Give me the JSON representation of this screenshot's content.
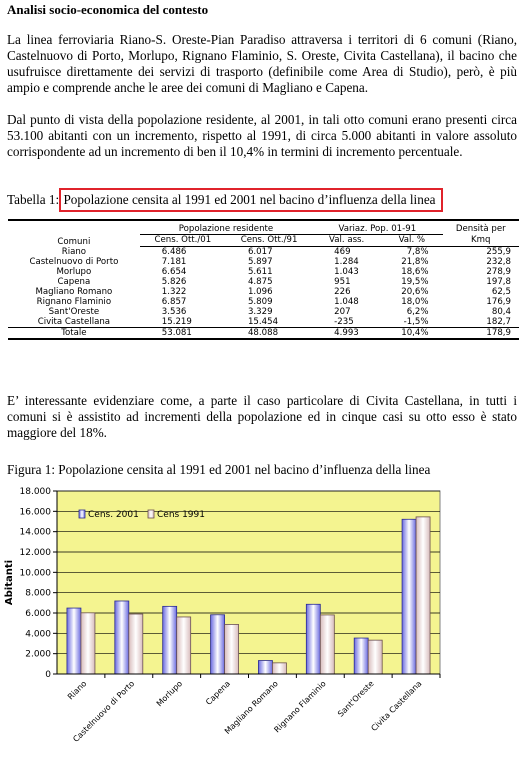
{
  "heading": "Analisi socio-economica del contesto",
  "para1": "La linea ferroviaria Riano-S. Oreste-Pian Paradiso attraversa i territori di 6 comuni (Riano, Castelnuovo di Porto, Morlupo, Rignano Flaminio, S. Oreste, Civita Castellana), il bacino che usufruisce direttamente dei servizi di trasporto (definibile come Area di Studio), però, è più ampio e comprende anche le aree dei comuni di Magliano e Capena.",
  "para2": "Dal punto di vista della popolazione residente, al 2001, in tali otto comuni erano presenti circa 53.100 abitanti con un incremento, rispetto al 1991, di circa 5.000 abitanti in valore assoluto corrispondente ad un incremento di ben il 10,4% in termini di incremento percentuale.",
  "table_caption": {
    "prefix": "Tabella 1: ",
    "text": "Popolazione censita al 1991 ed 2001 nel bacino d’influenza della linea"
  },
  "table": {
    "header": {
      "comuni": "Comuni",
      "pop_group": "Popolazione residente",
      "var_group": "Variaz. Pop. 01-91",
      "dens_line1": "Densità per",
      "cens01": "Cens. Ott./01",
      "cens91": "Cens. Ott./91",
      "val_ass": "Val. ass.",
      "val_pct": "Val. %",
      "dens_line2": "Kmq"
    },
    "rows": [
      {
        "comune": "Riano",
        "cens01": "6.486",
        "cens91": "6.017",
        "val_ass": "469",
        "val_pct": "7,8%",
        "densita": "255,9"
      },
      {
        "comune": "Castelnuovo di Porto",
        "cens01": "7.181",
        "cens91": "5.897",
        "val_ass": "1.284",
        "val_pct": "21,8%",
        "densita": "232,8"
      },
      {
        "comune": "Morlupo",
        "cens01": "6.654",
        "cens91": "5.611",
        "val_ass": "1.043",
        "val_pct": "18,6%",
        "densita": "278,9"
      },
      {
        "comune": "Capena",
        "cens01": "5.826",
        "cens91": "4.875",
        "val_ass": "951",
        "val_pct": "19,5%",
        "densita": "197,8"
      },
      {
        "comune": "Magliano Romano",
        "cens01": "1.322",
        "cens91": "1.096",
        "val_ass": "226",
        "val_pct": "20,6%",
        "densita": "62,5"
      },
      {
        "comune": "Rignano Flaminio",
        "cens01": "6.857",
        "cens91": "5.809",
        "val_ass": "1.048",
        "val_pct": "18,0%",
        "densita": "176,9"
      },
      {
        "comune": "Sant'Oreste",
        "cens01": "3.536",
        "cens91": "3.329",
        "val_ass": "207",
        "val_pct": "6,2%",
        "densita": "80,4"
      },
      {
        "comune": "Civita Castellana",
        "cens01": "15.219",
        "cens91": "15.454",
        "val_ass": "-235",
        "val_pct": "-1,5%",
        "densita": "182,7"
      }
    ],
    "total": {
      "comune": "Totale",
      "cens01": "53.081",
      "cens91": "48.088",
      "val_ass": "4.993",
      "val_pct": "10,4%",
      "densita": "178,9"
    }
  },
  "para3": "E’ interessante evidenziare come, a parte il caso particolare di Civita Castellana, in tutti i comuni si è assistito ad incrementi della popolazione ed in cinque casi su otto esso è stato maggiore del 18%.",
  "figure_caption": "Figura 1: Popolazione censita al 1991 ed 2001 nel bacino d’influenza della linea",
  "colors": {
    "plot_background": "#f4f490",
    "series_2001": "#6a6ae0",
    "series_1991": "#d8bcbc",
    "highlight_box": "#e0232b"
  },
  "chart_data": {
    "type": "bar",
    "categories": [
      "Riano",
      "Castelnuovo di Porto",
      "Morlupo",
      "Capena",
      "Magliano Romano",
      "Rignano Flaminio",
      "Sant'Oreste",
      "Civita Castellana"
    ],
    "series": [
      {
        "name": "Cens. 2001",
        "values": [
          6486,
          7181,
          6654,
          5826,
          1322,
          6857,
          3536,
          15219
        ]
      },
      {
        "name": "Cens 1991",
        "values": [
          6017,
          5897,
          5611,
          4875,
          1096,
          5809,
          3329,
          15454
        ]
      }
    ],
    "ylabel": "Abitanti",
    "ylim": [
      0,
      18000
    ],
    "yticks": [
      0,
      2000,
      4000,
      6000,
      8000,
      10000,
      12000,
      14000,
      16000,
      18000
    ],
    "ytick_labels": [
      "0",
      "2.000",
      "4.000",
      "6.000",
      "8.000",
      "10.000",
      "12.000",
      "14.000",
      "16.000",
      "18.000"
    ],
    "grid": true,
    "legend": "top-left"
  }
}
